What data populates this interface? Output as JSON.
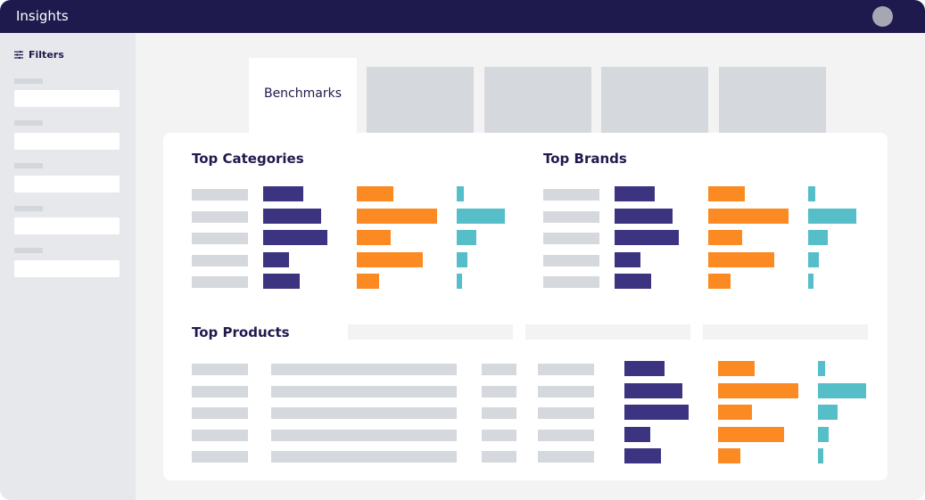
{
  "header": {
    "title": "Insights"
  },
  "sidebar": {
    "filters_label": "Filters",
    "filter_count": 5
  },
  "tabs": {
    "active_label": "Benchmarks",
    "inactive_count": 4
  },
  "sections": {
    "top_categories": {
      "title": "Top Categories",
      "rows": [
        {
          "navy": 45,
          "orange": 41,
          "teal": 8
        },
        {
          "navy": 65,
          "orange": 90,
          "teal": 54
        },
        {
          "navy": 72,
          "orange": 38,
          "teal": 22
        },
        {
          "navy": 29,
          "orange": 74,
          "teal": 12
        },
        {
          "navy": 41,
          "orange": 25,
          "teal": 6
        }
      ]
    },
    "top_brands": {
      "title": "Top Brands",
      "rows": [
        {
          "navy": 45,
          "orange": 41,
          "teal": 8
        },
        {
          "navy": 65,
          "orange": 90,
          "teal": 54
        },
        {
          "navy": 72,
          "orange": 38,
          "teal": 22
        },
        {
          "navy": 29,
          "orange": 74,
          "teal": 12
        },
        {
          "navy": 41,
          "orange": 25,
          "teal": 6
        }
      ]
    },
    "top_products": {
      "title": "Top Products",
      "rows": [
        {
          "navy": 45,
          "orange": 41,
          "teal": 8
        },
        {
          "navy": 65,
          "orange": 90,
          "teal": 54
        },
        {
          "navy": 72,
          "orange": 38,
          "teal": 22
        },
        {
          "navy": 29,
          "orange": 74,
          "teal": 12
        },
        {
          "navy": 41,
          "orange": 25,
          "teal": 6
        }
      ]
    }
  },
  "colors": {
    "header_bg": "#1f1a4d",
    "navy_bar": "#3c3480",
    "orange_bar": "#fb8a23",
    "teal_bar": "#56bec8",
    "placeholder": "#d5d8dc"
  }
}
